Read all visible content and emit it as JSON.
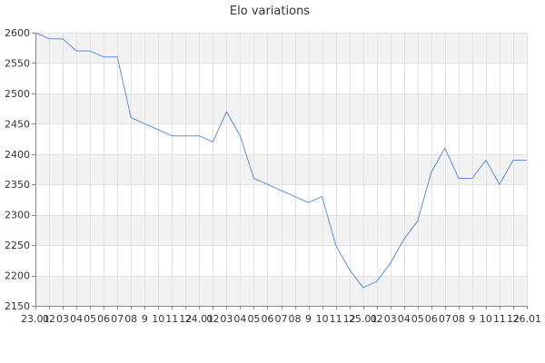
{
  "chart_data": {
    "type": "line",
    "title": "Elo variations",
    "xlabel": "",
    "ylabel": "",
    "ylim": [
      2150,
      2600
    ],
    "y_ticks": [
      2150,
      2200,
      2250,
      2300,
      2350,
      2400,
      2450,
      2500,
      2550,
      2600
    ],
    "x_tick_labels": [
      "23.01",
      "02",
      "03",
      "04",
      "05",
      "06",
      "07",
      "08",
      "9",
      "10",
      "11",
      "12",
      "24.01",
      "02",
      "03",
      "04",
      "05",
      "06",
      "07",
      "08",
      "9",
      "10",
      "11",
      "12",
      "25.01",
      "02",
      "03",
      "04",
      "05",
      "06",
      "07",
      "08",
      "9",
      "10",
      "11",
      "12",
      "26.01"
    ],
    "x": [
      "23.01",
      "02",
      "03",
      "04",
      "05",
      "06",
      "07",
      "08",
      "9",
      "10",
      "11",
      "12",
      "24.01",
      "02",
      "03",
      "04",
      "05",
      "06",
      "07",
      "08",
      "9",
      "10",
      "11",
      "12",
      "25.01",
      "02",
      "03",
      "04",
      "05",
      "06",
      "07",
      "08",
      "9",
      "10",
      "11",
      "12",
      "26.01"
    ],
    "series": [
      {
        "values": [
          2600,
          2590,
          2590,
          2570,
          2570,
          2560,
          2560,
          2460,
          2450,
          2440,
          2430,
          2430,
          2430,
          2420,
          2470,
          2430,
          2360,
          2350,
          2340,
          2330,
          2320,
          2330,
          2250,
          2210,
          2180,
          2190,
          2220,
          2260,
          2290,
          2370,
          2410,
          2360,
          2360,
          2390,
          2350,
          2390,
          2390
        ]
      }
    ],
    "grid": true,
    "legend": "none",
    "colors": {
      "line": "#5b8fd9",
      "band": "#f2f2f2",
      "grid": "#e2e2e2",
      "axis": "#888888",
      "text": "#333333"
    }
  }
}
